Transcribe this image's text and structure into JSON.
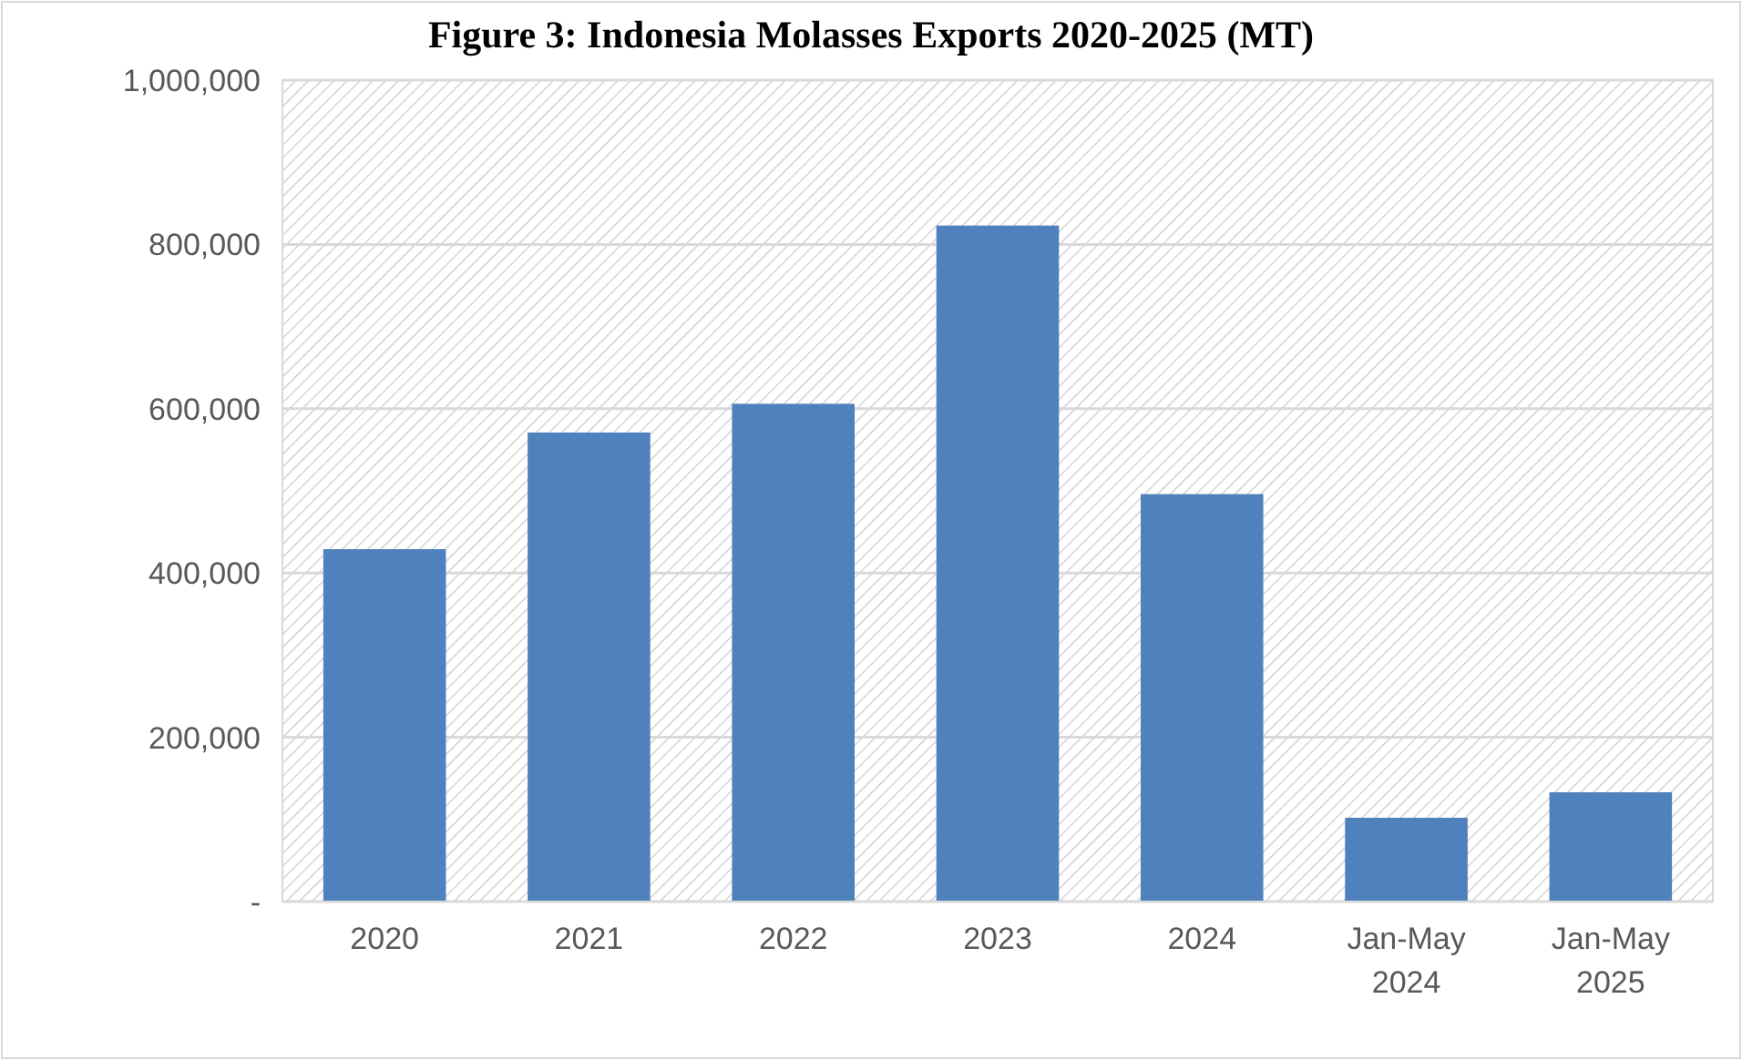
{
  "chart_data": {
    "type": "bar",
    "title": "Figure 3: Indonesia Molasses Exports 2020-2025 (MT)",
    "categories": [
      "2020",
      "2021",
      "2022",
      "2023",
      "2024",
      "Jan-May\n2024",
      "Jan-May\n2025"
    ],
    "values": [
      429000,
      571000,
      606000,
      823000,
      496000,
      102000,
      133000
    ],
    "color": "#4f81bd",
    "ylim": [
      0,
      1000000
    ],
    "yticks": [
      {
        "value": 0,
        "label": "-"
      },
      {
        "value": 200000,
        "label": "200,000"
      },
      {
        "value": 400000,
        "label": "400,000"
      },
      {
        "value": 600000,
        "label": "600,000"
      },
      {
        "value": 800000,
        "label": "800,000"
      },
      {
        "value": 1000000,
        "label": "1,000,000"
      }
    ],
    "grid": "y"
  }
}
